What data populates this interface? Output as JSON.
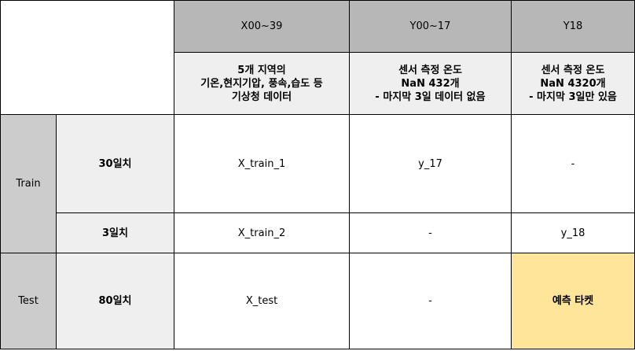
{
  "header": {
    "col1": "X00~39",
    "col2": "Y00~17",
    "col3": "Y18"
  },
  "subheader": {
    "col1": [
      "5개 지역의",
      "기온,현지기압, 풍속,습도 등",
      "기상청 데이터"
    ],
    "col2": [
      "센서 측정 온도",
      "NaN 432개",
      "- 마지막 3일 데이터 없음"
    ],
    "col3": [
      "센서 측정 온도",
      "NaN 4320개",
      "- 마지막 3일만 있음"
    ]
  },
  "groups": {
    "train": "Train",
    "test": "Test"
  },
  "rows": [
    {
      "days": "30일치",
      "x": "X_train_1",
      "y": "y_17",
      "y18": "-"
    },
    {
      "days": "3일치",
      "x": "X_train_2",
      "y": "-",
      "y18": "y_18"
    },
    {
      "days": "80일치",
      "x": "X_test",
      "y": "-",
      "y18": "예측 타켓"
    }
  ],
  "colors": {
    "header_bg": "#b7b7b7",
    "subheader_bg": "#efefef",
    "group_bg": "#cccccc",
    "target_bg": "#ffe599"
  }
}
